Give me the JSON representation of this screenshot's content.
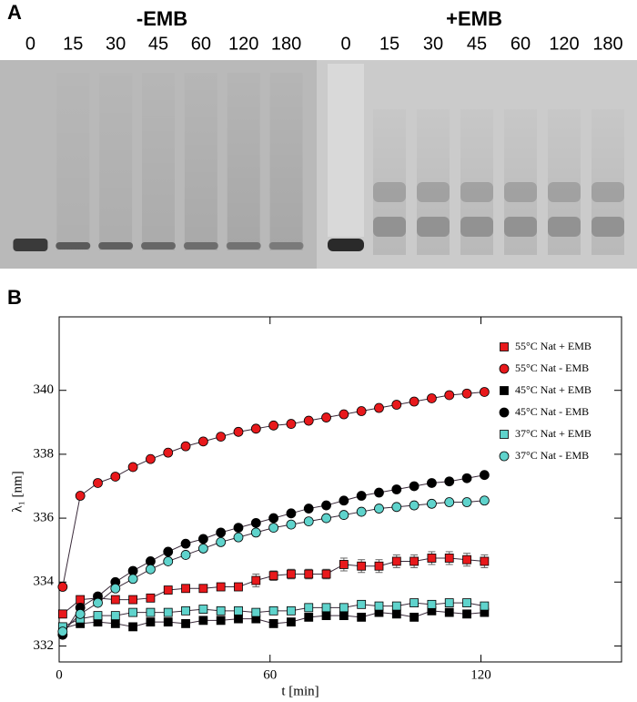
{
  "panel_a": {
    "label": "A",
    "groups": [
      {
        "title": "-EMB",
        "lanes": [
          0,
          15,
          30,
          45,
          60,
          120,
          180
        ]
      },
      {
        "title": "+EMB",
        "lanes": [
          0,
          15,
          30,
          45,
          60,
          120,
          180
        ]
      }
    ]
  },
  "panel_b_label": "B",
  "chart_data": {
    "type": "scatter",
    "x_label": "t [min]",
    "y_label": "λ₁ [nm]",
    "x": [
      1,
      6,
      11,
      16,
      21,
      26,
      31,
      36,
      41,
      46,
      51,
      56,
      61,
      66,
      71,
      76,
      81,
      86,
      91,
      96,
      101,
      106,
      111,
      116,
      121
    ],
    "xlim": [
      0,
      160
    ],
    "xticks": [
      0,
      60,
      120
    ],
    "ylim": [
      331.5,
      342.3
    ],
    "yticks": [
      332,
      334,
      336,
      338,
      340
    ],
    "line_color": "#3a2a3a",
    "series": [
      {
        "name": "55°C Nat + EMB",
        "color": "#e8191c",
        "marker": "square",
        "values": [
          333.0,
          333.45,
          333.5,
          333.45,
          333.45,
          333.5,
          333.75,
          333.8,
          333.8,
          333.85,
          333.85,
          334.05,
          334.2,
          334.25,
          334.25,
          334.25,
          334.55,
          334.5,
          334.5,
          334.65,
          334.65,
          334.75,
          334.75,
          334.7,
          334.65
        ],
        "errors": [
          null,
          null,
          null,
          null,
          null,
          null,
          null,
          null,
          null,
          null,
          null,
          0.2,
          0.15,
          0.15,
          0.15,
          0.15,
          0.2,
          0.2,
          0.2,
          0.2,
          0.2,
          0.2,
          0.2,
          0.2,
          0.2
        ]
      },
      {
        "name": "55°C Nat - EMB",
        "color": "#e8191c",
        "marker": "circle",
        "values": [
          333.85,
          336.7,
          337.1,
          337.3,
          337.6,
          337.85,
          338.05,
          338.25,
          338.4,
          338.55,
          338.7,
          338.8,
          338.9,
          338.95,
          339.05,
          339.15,
          339.25,
          339.35,
          339.45,
          339.55,
          339.65,
          339.75,
          339.85,
          339.9,
          339.95
        ]
      },
      {
        "name": "45°C Nat + EMB",
        "color": "#000000",
        "marker": "square",
        "values": [
          332.55,
          332.7,
          332.75,
          332.7,
          332.6,
          332.75,
          332.75,
          332.7,
          332.8,
          332.8,
          332.85,
          332.85,
          332.7,
          332.75,
          332.9,
          332.95,
          332.95,
          332.9,
          333.05,
          333.0,
          332.9,
          333.1,
          333.05,
          333.0,
          333.05
        ]
      },
      {
        "name": "45°C Nat - EMB",
        "color": "#000000",
        "marker": "circle",
        "values": [
          332.35,
          333.2,
          333.55,
          334.0,
          334.35,
          334.65,
          334.95,
          335.2,
          335.35,
          335.55,
          335.7,
          335.85,
          336.0,
          336.15,
          336.3,
          336.4,
          336.55,
          336.7,
          336.8,
          336.9,
          337.0,
          337.1,
          337.15,
          337.25,
          337.35
        ]
      },
      {
        "name": "37°C Nat + EMB",
        "color": "#5fd3cc",
        "marker": "square",
        "values": [
          332.6,
          332.85,
          332.95,
          332.95,
          333.05,
          333.05,
          333.05,
          333.1,
          333.15,
          333.1,
          333.1,
          333.05,
          333.1,
          333.1,
          333.2,
          333.2,
          333.2,
          333.3,
          333.25,
          333.25,
          333.35,
          333.3,
          333.35,
          333.35,
          333.25
        ]
      },
      {
        "name": "37°C Nat - EMB",
        "color": "#5fd3cc",
        "marker": "circle",
        "values": [
          332.45,
          333.0,
          333.35,
          333.8,
          334.1,
          334.4,
          334.65,
          334.85,
          335.05,
          335.25,
          335.4,
          335.55,
          335.7,
          335.8,
          335.9,
          336.0,
          336.1,
          336.2,
          336.3,
          336.35,
          336.4,
          336.45,
          336.5,
          336.5,
          336.55
        ]
      }
    ]
  }
}
